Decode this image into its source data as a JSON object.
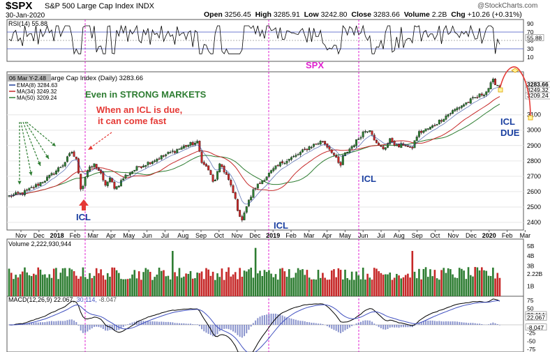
{
  "header": {
    "symbol": "$SPX",
    "name": "S&P 500 Large Cap Index",
    "exchange": "INDX",
    "date": "30-Jan-2020",
    "open_label": "Open",
    "open": "3256.45",
    "high_label": "High",
    "high": "3285.91",
    "low_label": "Low",
    "low": "3242.80",
    "close_label": "Close",
    "close": "3283.66",
    "volume_label": "Volume",
    "volume": "2.2B",
    "chg_label": "Chg",
    "chg": "+10.26 (+0.31%)",
    "watermark": "@StockCharts.com"
  },
  "rsi_panel": {
    "label": "RSI(14) 55.88",
    "ticks": [
      "90",
      "70",
      "50",
      "30",
      "10"
    ],
    "current_value": "55.88",
    "annotation": "SPX"
  },
  "price_panel": {
    "hover_date": "06 Mar Y-2.48",
    "title_suffix": "arge Cap Index (Daily) 3283.66",
    "legend": [
      {
        "label": "EMA(8) 3284.63",
        "color": "#1f3d99"
      },
      {
        "label": "MA(34) 3249.32",
        "color": "#c62828"
      },
      {
        "label": "MA(50) 3209.24",
        "color": "#2e7d32"
      }
    ],
    "ticks": [
      "3283.66",
      "3249.32",
      "3209.24",
      "3100",
      "3000",
      "2900",
      "2800",
      "2700",
      "2600",
      "2500",
      "2400"
    ],
    "annotations": {
      "strong": "Even in STRONG MARKETS",
      "icl_due_line1": "When an ICL is due,",
      "icl_due_line2": "it can come fast",
      "icl": "ICL",
      "icl_due_a": "ICL",
      "icl_due_b": "DUE"
    }
  },
  "x_axis": {
    "labels": [
      "Nov",
      "Dec",
      "2018",
      "Feb",
      "Mar",
      "Apr",
      "May",
      "Jun",
      "Jul",
      "Aug",
      "Sep",
      "Oct",
      "Nov",
      "Dec",
      "2019",
      "Feb",
      "Mar",
      "Apr",
      "May",
      "Jun",
      "Jul",
      "Aug",
      "Sep",
      "Oct",
      "Nov",
      "Dec",
      "2020",
      "Feb",
      "Mar"
    ]
  },
  "volume_panel": {
    "label": "Volume 2,222,930,944",
    "ticks": [
      "5B",
      "4B",
      "3B",
      "2.22B",
      "1B"
    ]
  },
  "macd_panel": {
    "label_a": "MACD(12,26,9)",
    "label_b": "22.067,",
    "label_c": "30.114,",
    "label_d": "-8.047",
    "ticks": [
      "75",
      "50",
      "30.114",
      "22.067",
      "-8.047",
      "-25",
      "-50",
      "-75"
    ]
  },
  "colors": {
    "up": "#2e7d32",
    "down": "#c62828",
    "frame": "#5a5a5a",
    "annotation_red": "#e53935",
    "annotation_green": "#2e7d32",
    "annotation_blue": "#1a3fa0",
    "annotation_magenta": "#e020d0",
    "forecast": "#e53935",
    "highlight": "#fff59d"
  },
  "chart_data": {
    "type": "line",
    "x_tick_labels": [
      "Nov",
      "Dec",
      "2018",
      "Feb",
      "Mar",
      "Apr",
      "May",
      "Jun",
      "Jul",
      "Aug",
      "Sep",
      "Oct",
      "Nov",
      "Dec",
      "2019",
      "Feb",
      "Mar",
      "Apr",
      "May",
      "Jun",
      "Jul",
      "Aug",
      "Sep",
      "Oct",
      "Nov",
      "Dec",
      "2020",
      "Feb",
      "Mar"
    ],
    "ylim": [
      2350,
      3380
    ],
    "y_ticks": [
      2400,
      2500,
      2600,
      2700,
      2800,
      2900,
      3000,
      3100
    ],
    "close_series": [
      {
        "t": 0,
        "v": 2570
      },
      {
        "t": 1,
        "v": 2590
      },
      {
        "t": 2,
        "v": 2640
      },
      {
        "t": 3,
        "v": 2700
      },
      {
        "t": 4,
        "v": 2780
      },
      {
        "t": 4.6,
        "v": 2860
      },
      {
        "t": 5,
        "v": 2790
      },
      {
        "t": 5.3,
        "v": 2600
      },
      {
        "t": 5.7,
        "v": 2730
      },
      {
        "t": 6.3,
        "v": 2780
      },
      {
        "t": 6.7,
        "v": 2720
      },
      {
        "t": 7,
        "v": 2640
      },
      {
        "t": 7.4,
        "v": 2680
      },
      {
        "t": 7.8,
        "v": 2620
      },
      {
        "t": 8.5,
        "v": 2700
      },
      {
        "t": 9.5,
        "v": 2760
      },
      {
        "t": 10,
        "v": 2780
      },
      {
        "t": 11,
        "v": 2820
      },
      {
        "t": 12,
        "v": 2860
      },
      {
        "t": 13,
        "v": 2900
      },
      {
        "t": 13.8,
        "v": 2920
      },
      {
        "t": 14.2,
        "v": 2780
      },
      {
        "t": 14.6,
        "v": 2750
      },
      {
        "t": 15,
        "v": 2650
      },
      {
        "t": 15.5,
        "v": 2780
      },
      {
        "t": 16,
        "v": 2700
      },
      {
        "t": 16.6,
        "v": 2550
      },
      {
        "t": 17,
        "v": 2400
      },
      {
        "t": 17.3,
        "v": 2480
      },
      {
        "t": 18,
        "v": 2620
      },
      {
        "t": 19,
        "v": 2710
      },
      {
        "t": 20,
        "v": 2790
      },
      {
        "t": 21,
        "v": 2830
      },
      {
        "t": 22,
        "v": 2890
      },
      {
        "t": 23,
        "v": 2930
      },
      {
        "t": 23.7,
        "v": 2860
      },
      {
        "t": 24.3,
        "v": 2760
      },
      {
        "t": 24.5,
        "v": 2830
      },
      {
        "t": 25.5,
        "v": 2930
      },
      {
        "t": 26,
        "v": 2990
      },
      {
        "t": 26.5,
        "v": 3010
      },
      {
        "t": 27,
        "v": 2900
      },
      {
        "t": 27.5,
        "v": 2880
      },
      {
        "t": 28,
        "v": 2940
      },
      {
        "t": 28.5,
        "v": 2890
      },
      {
        "t": 29,
        "v": 2910
      },
      {
        "t": 29.5,
        "v": 2870
      },
      {
        "t": 30,
        "v": 2980
      },
      {
        "t": 31,
        "v": 3020
      },
      {
        "t": 32,
        "v": 3090
      },
      {
        "t": 33,
        "v": 3150
      },
      {
        "t": 34,
        "v": 3200
      },
      {
        "t": 35,
        "v": 3250
      },
      {
        "t": 35.5,
        "v": 3320
      },
      {
        "t": 36,
        "v": 3283
      }
    ],
    "series": [
      {
        "name": "EMA(8)",
        "color": "#1f3d99"
      },
      {
        "name": "MA(34)",
        "color": "#c62828"
      },
      {
        "name": "MA(50)",
        "color": "#2e7d32"
      }
    ]
  }
}
